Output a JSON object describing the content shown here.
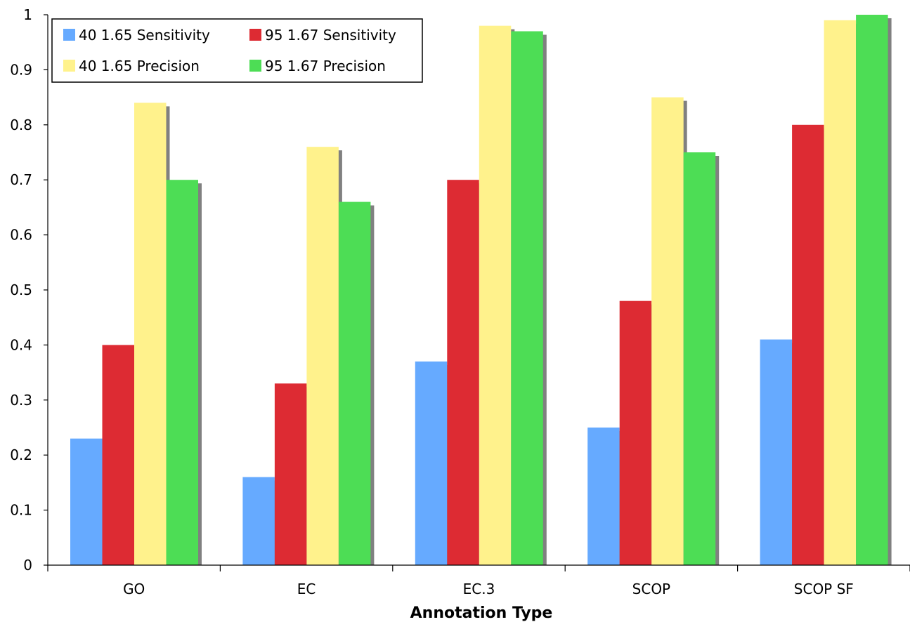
{
  "chart_data": {
    "type": "bar",
    "title": "",
    "xlabel": "Annotation Type",
    "ylabel": "",
    "ylim": [
      0,
      1
    ],
    "yticks": [
      "0",
      "0.1",
      "0.2",
      "0.3",
      "0.4",
      "0.5",
      "0.6",
      "0.7",
      "0.8",
      "0.9",
      "1"
    ],
    "ytick_values": [
      0,
      0.1,
      0.2,
      0.3,
      0.4,
      0.5,
      0.6,
      0.7,
      0.8,
      0.9,
      1
    ],
    "categories": [
      "GO",
      "EC",
      "EC.3",
      "SCOP",
      "SCOP SF"
    ],
    "series": [
      {
        "name": "40 1.65 Sensitivity",
        "color": "#66aaff",
        "values": [
          0.23,
          0.16,
          0.37,
          0.25,
          0.41
        ]
      },
      {
        "name": "95 1.67 Sensitivity",
        "color": "#dd2b33",
        "values": [
          0.4,
          0.33,
          0.7,
          0.48,
          0.8
        ]
      },
      {
        "name": "40 1.65 Precision",
        "color": "#fff28c",
        "values": [
          0.84,
          0.76,
          0.98,
          0.85,
          0.99
        ]
      },
      {
        "name": "95 1.67 Precision",
        "color": "#4ddd55",
        "values": [
          0.7,
          0.66,
          0.97,
          0.75,
          1.0
        ]
      }
    ],
    "grid": false,
    "legend": "top-left",
    "shadow_color": "#808080"
  }
}
